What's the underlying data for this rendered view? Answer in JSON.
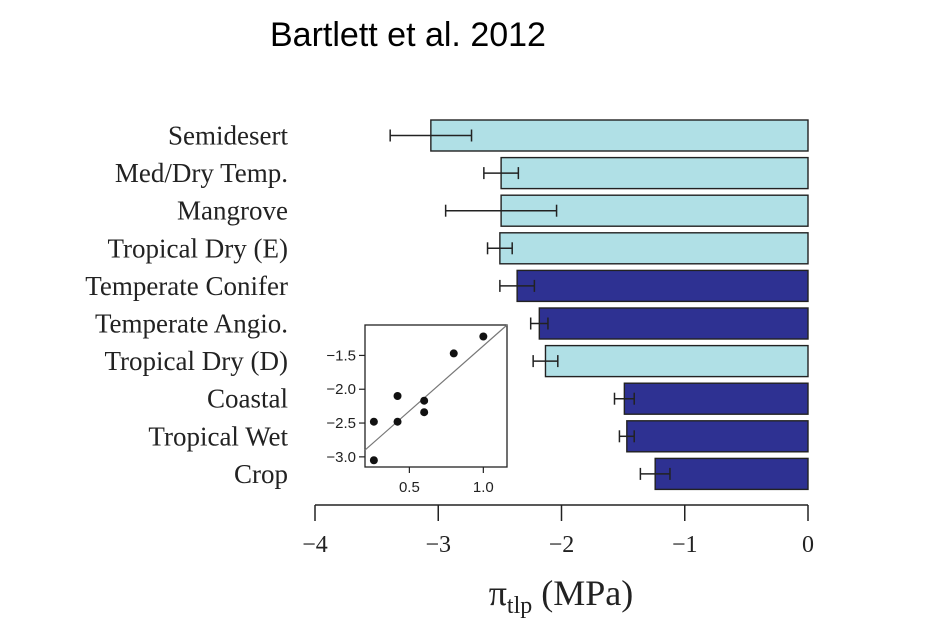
{
  "title": "Bartlett et al. 2012",
  "chart_data": [
    {
      "type": "bar",
      "orientation": "horizontal",
      "categories": [
        "Semidesert",
        "Med/Dry Temp.",
        "Mangrove",
        "Tropical Dry (E)",
        "Temperate Conifer",
        "Temperate Angio.",
        "Tropical Dry (D)",
        "Coastal",
        "Tropical Wet",
        "Crop"
      ],
      "values": [
        -3.06,
        -2.49,
        -2.49,
        -2.5,
        -2.36,
        -2.18,
        -2.13,
        -1.49,
        -1.47,
        -1.24
      ],
      "errors": [
        0.33,
        0.14,
        0.45,
        0.1,
        0.14,
        0.07,
        0.1,
        0.08,
        0.06,
        0.12
      ],
      "colors": [
        "#b0e0e6",
        "#b0e0e6",
        "#b0e0e6",
        "#b0e0e6",
        "#2e3192",
        "#2e3192",
        "#b0e0e6",
        "#2e3192",
        "#2e3192",
        "#2e3192"
      ],
      "xlim": [
        -4,
        0
      ],
      "xticks": [
        -4,
        -3,
        -2,
        -1,
        0
      ],
      "xtick_labels": [
        "−4",
        "−3",
        "−2",
        "−1",
        "0"
      ],
      "xlabel": "π",
      "xlabel_subscript": "tlp",
      "xlabel_suffix": " (MPa)",
      "ylabel": "",
      "grid": false
    },
    {
      "type": "scatter",
      "inset": true,
      "points": [
        {
          "x": 0.26,
          "y": -2.48
        },
        {
          "x": 0.26,
          "y": -3.05
        },
        {
          "x": 0.42,
          "y": -2.1
        },
        {
          "x": 0.42,
          "y": -2.48
        },
        {
          "x": 0.6,
          "y": -2.17
        },
        {
          "x": 0.6,
          "y": -2.34
        },
        {
          "x": 0.8,
          "y": -1.47
        },
        {
          "x": 1.0,
          "y": -1.22
        }
      ],
      "fit_line": {
        "x": [
          0.2,
          1.16
        ],
        "y": [
          -2.9,
          -1.05
        ]
      },
      "xlim": [
        0.2,
        1.16
      ],
      "ylim": [
        -3.15,
        -1.05
      ],
      "xticks": [
        0.5,
        1.0
      ],
      "xtick_labels": [
        "0.5",
        "1.0"
      ],
      "yticks": [
        -1.5,
        -2.0,
        -2.5,
        -3.0
      ],
      "ytick_labels": [
        "−1.5",
        "−2.0",
        "−2.5",
        "−3.0"
      ],
      "xlabel": "",
      "ylabel": ""
    }
  ]
}
